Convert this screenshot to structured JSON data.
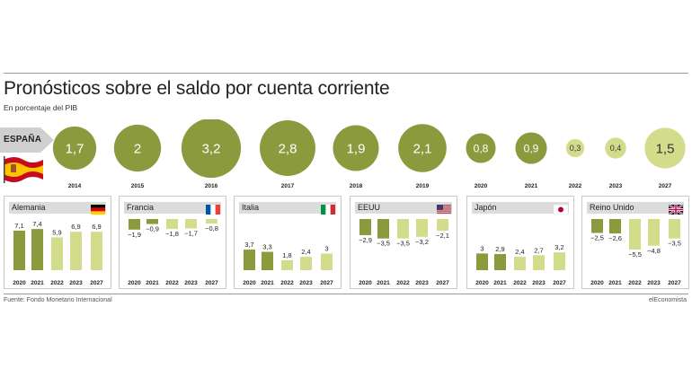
{
  "title": "Pronósticos sobre el saldo por cuenta corriente",
  "subtitle": "En porcentaje del PIB",
  "source": "Fuente: Fondo Monetario Internacional",
  "brand": "elEconomista",
  "colors": {
    "dark": "#8a9a3c",
    "light": "#d3dc8a",
    "panel_head": "#dcdcdc"
  },
  "chart_data": [
    {
      "type": "bubble",
      "label": "ESPAÑA",
      "x": [
        "2014",
        "2015",
        "2016",
        "2017",
        "2018",
        "2019",
        "2020",
        "2021",
        "2022",
        "2023",
        "2027"
      ],
      "values": [
        1.7,
        2,
        3.2,
        2.8,
        1.9,
        2.1,
        0.8,
        0.9,
        0.3,
        0.4,
        1.5
      ],
      "value_labels": [
        "1,7",
        "2",
        "3,2",
        "2,8",
        "1,9",
        "2,1",
        "0,8",
        "0,9",
        "0,3",
        "0,4",
        "1,5"
      ],
      "forecast": [
        false,
        false,
        false,
        false,
        false,
        false,
        false,
        false,
        true,
        true,
        true
      ]
    },
    {
      "type": "bar",
      "title": "Alemania",
      "flag": "de",
      "categories": [
        "2020",
        "2021",
        "2022",
        "2023",
        "2027"
      ],
      "values": [
        7.1,
        7.4,
        5.9,
        6.9,
        6.9
      ],
      "value_labels": [
        "7,1",
        "7,4",
        "5,9",
        "6,9",
        "6,9"
      ],
      "forecast": [
        false,
        false,
        true,
        true,
        true
      ]
    },
    {
      "type": "bar",
      "title": "Francia",
      "flag": "fr",
      "categories": [
        "2020",
        "2021",
        "2022",
        "2023",
        "2027"
      ],
      "values": [
        -1.9,
        -0.9,
        -1.8,
        -1.7,
        -0.8
      ],
      "value_labels": [
        "−1,9",
        "−0,9",
        "−1,8",
        "−1,7",
        "−0,8"
      ],
      "forecast": [
        false,
        false,
        true,
        true,
        true
      ]
    },
    {
      "type": "bar",
      "title": "Italia",
      "flag": "it",
      "categories": [
        "2020",
        "2021",
        "2022",
        "2023",
        "2027"
      ],
      "values": [
        3.7,
        3.3,
        1.8,
        2.4,
        3
      ],
      "value_labels": [
        "3,7",
        "3,3",
        "1,8",
        "2,4",
        "3"
      ],
      "forecast": [
        false,
        false,
        true,
        true,
        true
      ]
    },
    {
      "type": "bar",
      "title": "EEUU",
      "flag": "us",
      "categories": [
        "2020",
        "2021",
        "2022",
        "2023",
        "2027"
      ],
      "values": [
        -2.9,
        -3.5,
        -3.5,
        -3.2,
        -2.1
      ],
      "value_labels": [
        "−2,9",
        "−3,5",
        "−3,5",
        "−3,2",
        "−2,1"
      ],
      "forecast": [
        false,
        false,
        true,
        true,
        true
      ]
    },
    {
      "type": "bar",
      "title": "Japón",
      "flag": "jp",
      "categories": [
        "2020",
        "2021",
        "2022",
        "2023",
        "2027"
      ],
      "values": [
        3,
        2.9,
        2.4,
        2.7,
        3.2
      ],
      "value_labels": [
        "3",
        "2,9",
        "2,4",
        "2,7",
        "3,2"
      ],
      "forecast": [
        false,
        false,
        true,
        true,
        true
      ]
    },
    {
      "type": "bar",
      "title": "Reino Unido",
      "flag": "uk",
      "categories": [
        "2020",
        "2021",
        "2022",
        "2023",
        "2027"
      ],
      "values": [
        -2.5,
        -2.6,
        -5.5,
        -4.8,
        -3.5
      ],
      "value_labels": [
        "−2,5",
        "−2,6",
        "−5,5",
        "−4,8",
        "−3,5"
      ],
      "forecast": [
        false,
        false,
        true,
        true,
        true
      ]
    }
  ]
}
